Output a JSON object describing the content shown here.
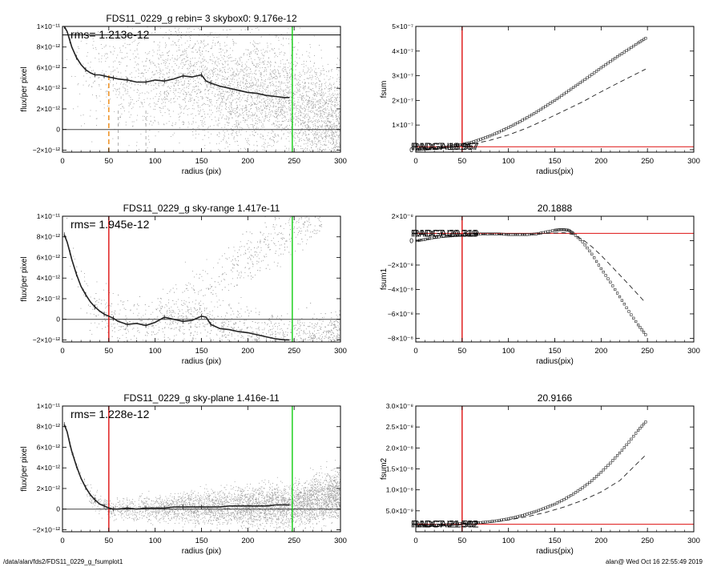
{
  "footer": {
    "left": "/data/alan/fds2/FDS11_0229_g_fsumplot1",
    "right": "alan@  Wed Oct 16 22:55:49 2019"
  },
  "colors": {
    "red": "#dd1111",
    "green": "#11cc11",
    "orange": "#ee8811",
    "points": "#9a9a9a"
  },
  "chart_data": [
    {
      "id": "p1",
      "type": "scatter",
      "title": "FDS11_0229_g rebin= 3    skybox0:  9.176e-12",
      "annotation": "rms= 1.213e-12",
      "xlabel": "radius (pix)",
      "ylabel": "flux/per pixel",
      "xlim": [
        0,
        300
      ],
      "ylim": [
        -2.2e-12,
        1e-11
      ],
      "xticks": [
        0,
        50,
        100,
        150,
        200,
        250,
        300
      ],
      "xticklabels": [
        "0",
        "50",
        "100",
        "150",
        "200",
        "250",
        "300"
      ],
      "yticks": [
        -2e-12,
        0,
        2e-12,
        4e-12,
        6e-12,
        8e-12,
        1e-11
      ],
      "yticklabels": [
        "−2×10⁻¹²",
        "0",
        "2×10⁻¹²",
        "4×10⁻¹²",
        "6×10⁻¹²",
        "8×10⁻¹²",
        "1×10⁻¹¹"
      ],
      "hlines": [
        {
          "y": 0,
          "color": "#444"
        },
        {
          "y": 9.176e-12,
          "color": "#000"
        }
      ],
      "vlines": [
        {
          "x": 248,
          "color": "#11cc11",
          "style": "solid"
        },
        {
          "x": 50,
          "color": "#ee8811",
          "style": "dash",
          "ymax": 5.5e-12
        },
        {
          "x": 60,
          "color": "#999",
          "style": "dash",
          "ymax": 2e-12
        },
        {
          "x": 90,
          "color": "#999",
          "style": "dash",
          "ymax": 2e-12
        }
      ],
      "scatter_model": "p1",
      "profile": {
        "x": [
          2,
          5,
          8,
          10,
          15,
          20,
          25,
          30,
          35,
          40,
          45,
          50,
          55,
          60,
          70,
          80,
          90,
          100,
          110,
          120,
          130,
          140,
          150,
          155,
          160,
          170,
          180,
          190,
          200,
          210,
          220,
          230,
          240,
          245
        ],
        "y": [
          1e-11,
          9.5e-12,
          8.6e-12,
          8e-12,
          7e-12,
          6.3e-12,
          5.8e-12,
          5.5e-12,
          5.3e-12,
          5.3e-12,
          5.2e-12,
          5.1e-12,
          5e-12,
          4.9e-12,
          4.8e-12,
          4.6e-12,
          4.6e-12,
          4.8e-12,
          4.7e-12,
          4.9e-12,
          5.2e-12,
          5.1e-12,
          5.3e-12,
          4.7e-12,
          4.5e-12,
          4.2e-12,
          4e-12,
          3.8e-12,
          3.6e-12,
          3.5e-12,
          3.3e-12,
          3.2e-12,
          3.1e-12,
          3.1e-12
        ]
      }
    },
    {
      "id": "p2",
      "type": "line",
      "title": "",
      "xlabel": "radius(pix)",
      "ylabel": "fsum",
      "xlim": [
        0,
        300
      ],
      "ylim": [
        -1e-08,
        5e-07
      ],
      "xticks": [
        0,
        50,
        100,
        150,
        200,
        250,
        300
      ],
      "xticklabels": [
        "0",
        "50",
        "100",
        "150",
        "200",
        "250",
        "300"
      ],
      "yticks": [
        0,
        1e-07,
        2e-07,
        3e-07,
        4e-07,
        5e-07
      ],
      "yticklabels": [
        "0",
        "1×10⁻⁷",
        "2×10⁻⁷",
        "3×10⁻⁷",
        "4×10⁻⁷",
        "5×10⁻⁷"
      ],
      "hlines": [
        {
          "y": 1.2e-08,
          "color": "#dd1111"
        }
      ],
      "vlines": [
        {
          "x": 50,
          "color": "#dd1111",
          "style": "solid"
        }
      ],
      "overlap_labels": [
        "RADCT",
        "RADGAL",
        "18.967",
        "18.967"
      ],
      "series": [
        {
          "name": "",
          "style": "markers",
          "x": [
            2,
            10,
            20,
            30,
            40,
            50,
            60,
            70,
            80,
            90,
            100,
            110,
            120,
            130,
            140,
            150,
            160,
            170,
            180,
            190,
            200,
            210,
            220,
            230,
            240,
            248
          ],
          "y": [
            0,
            2e-09,
            5e-09,
            9e-09,
            1.5e-08,
            2.1e-08,
            3e-08,
            4.2e-08,
            5.6e-08,
            7.2e-08,
            9e-08,
            1.09e-07,
            1.3e-07,
            1.52e-07,
            1.76e-07,
            2e-07,
            2.26e-07,
            2.52e-07,
            2.78e-07,
            3.05e-07,
            3.32e-07,
            3.58e-07,
            3.84e-07,
            4.08e-07,
            4.33e-07,
            4.52e-07
          ]
        },
        {
          "name": "",
          "style": "dash",
          "x": [
            2,
            20,
            40,
            60,
            80,
            100,
            120,
            140,
            160,
            180,
            200,
            220,
            248
          ],
          "y": [
            0,
            4e-09,
            1.2e-08,
            2.2e-08,
            3.8e-08,
            6e-08,
            8.8e-08,
            1.22e-07,
            1.58e-07,
            1.94e-07,
            2.35e-07,
            2.74e-07,
            3.27e-07
          ]
        }
      ]
    },
    {
      "id": "p3",
      "type": "scatter",
      "title": "FDS11_0229_g sky-range  1.417e-11",
      "annotation": "rms= 1.945e-12",
      "xlabel": "radius (pix)",
      "ylabel": "flux/per pixel",
      "xlim": [
        0,
        300
      ],
      "ylim": [
        -2.2e-12,
        1e-11
      ],
      "xticks": [
        0,
        50,
        100,
        150,
        200,
        250,
        300
      ],
      "xticklabels": [
        "0",
        "50",
        "100",
        "150",
        "200",
        "250",
        "300"
      ],
      "yticks": [
        -2e-12,
        0,
        2e-12,
        4e-12,
        6e-12,
        8e-12,
        1e-11
      ],
      "yticklabels": [
        "−2×10⁻¹²",
        "0",
        "2×10⁻¹²",
        "4×10⁻¹²",
        "6×10⁻¹²",
        "8×10⁻¹²",
        "1×10⁻¹¹"
      ],
      "hlines": [
        {
          "y": 0,
          "color": "#444"
        }
      ],
      "vlines": [
        {
          "x": 50,
          "color": "#dd1111",
          "style": "solid"
        },
        {
          "x": 248,
          "color": "#11cc11",
          "style": "solid"
        }
      ],
      "scatter_model": "p3",
      "profile": {
        "x": [
          2,
          5,
          8,
          10,
          15,
          20,
          25,
          30,
          35,
          40,
          45,
          50,
          55,
          60,
          70,
          80,
          90,
          100,
          110,
          120,
          130,
          140,
          150,
          155,
          160,
          170,
          180,
          190,
          200,
          210,
          220,
          230,
          240,
          245
        ],
        "y": [
          8.2e-12,
          7.5e-12,
          6.5e-12,
          5.8e-12,
          4.4e-12,
          3.2e-12,
          2.4e-12,
          1.7e-12,
          1.2e-12,
          8e-13,
          5e-13,
          3e-13,
          1e-13,
          -2e-13,
          -5e-13,
          -4e-13,
          -6e-13,
          -3e-13,
          2e-13,
          0,
          -2e-13,
          -1e-13,
          3e-13,
          2e-13,
          -5e-13,
          -9e-13,
          -1e-12,
          -1.2e-12,
          -1.3e-12,
          -1.5e-12,
          -1.7e-12,
          -1.9e-12,
          -2e-12,
          -2e-12
        ]
      }
    },
    {
      "id": "p4",
      "type": "line",
      "title": "20.1888",
      "xlabel": "radius(pix)",
      "ylabel": "fsum1",
      "xlim": [
        0,
        300
      ],
      "ylim": [
        -8.3e-08,
        2e-08
      ],
      "xticks": [
        0,
        50,
        100,
        150,
        200,
        250,
        300
      ],
      "xticklabels": [
        "0",
        "50",
        "100",
        "150",
        "200",
        "250",
        "300"
      ],
      "yticks": [
        -8e-08,
        -6e-08,
        -4e-08,
        -2e-08,
        0,
        2e-08
      ],
      "yticklabels": [
        "−8×10⁻⁸",
        "−6×10⁻⁸",
        "−4×10⁻⁸",
        "−2×10⁻⁸",
        "0",
        "2×10⁻⁸"
      ],
      "hlines": [
        {
          "y": 6e-09,
          "color": "#dd1111"
        }
      ],
      "vlines": [
        {
          "x": 50,
          "color": "#dd1111",
          "style": "solid"
        }
      ],
      "overlap_labels": [
        "RADCT",
        "RADGAL",
        "20.319",
        "20.319"
      ],
      "series": [
        {
          "name": "",
          "style": "markers",
          "x": [
            2,
            10,
            20,
            30,
            40,
            50,
            60,
            70,
            80,
            90,
            100,
            110,
            120,
            130,
            140,
            150,
            155,
            160,
            165,
            170,
            180,
            190,
            200,
            210,
            220,
            230,
            240,
            248
          ],
          "y": [
            0,
            1e-09,
            2.5e-09,
            3.5e-09,
            4e-09,
            4.5e-09,
            5e-09,
            5.5e-09,
            5.5e-09,
            5.5e-09,
            5e-09,
            5e-09,
            5e-09,
            5.5e-09,
            7e-09,
            8.5e-09,
            9e-09,
            9e-09,
            8.5e-09,
            6e-09,
            -1e-09,
            -1.1e-08,
            -2.3e-08,
            -3.4e-08,
            -4.6e-08,
            -5.8e-08,
            -6.9e-08,
            -7.7e-08
          ]
        },
        {
          "name": "",
          "style": "dash",
          "x": [
            2,
            20,
            40,
            60,
            80,
            100,
            120,
            140,
            160,
            170,
            180,
            190,
            200,
            210,
            220,
            230,
            248
          ],
          "y": [
            0,
            2e-09,
            3.5e-09,
            5e-09,
            5.5e-09,
            5e-09,
            5e-09,
            6e-09,
            6.5e-09,
            5e-09,
            1e-09,
            -5e-09,
            -1.2e-08,
            -2e-08,
            -2.8e-08,
            -3.6e-08,
            -5.1e-08
          ]
        }
      ]
    },
    {
      "id": "p5",
      "type": "scatter",
      "title": "FDS11_0229_g sky-plane  1.416e-11",
      "annotation": "rms= 1.228e-12",
      "xlabel": "radius (pix)",
      "ylabel": "flux/per pixel",
      "xlim": [
        0,
        300
      ],
      "ylim": [
        -2.2e-12,
        1e-11
      ],
      "xticks": [
        0,
        50,
        100,
        150,
        200,
        250,
        300
      ],
      "xticklabels": [
        "0",
        "50",
        "100",
        "150",
        "200",
        "250",
        "300"
      ],
      "yticks": [
        -2e-12,
        0,
        2e-12,
        4e-12,
        6e-12,
        8e-12,
        1e-11
      ],
      "yticklabels": [
        "−2×10⁻¹²",
        "0",
        "2×10⁻¹²",
        "4×10⁻¹²",
        "6×10⁻¹²",
        "8×10⁻¹²",
        "1×10⁻¹¹"
      ],
      "hlines": [
        {
          "y": 0,
          "color": "#444"
        }
      ],
      "vlines": [
        {
          "x": 50,
          "color": "#dd1111",
          "style": "solid"
        },
        {
          "x": 248,
          "color": "#11cc11",
          "style": "solid"
        }
      ],
      "scatter_model": "p5",
      "profile": {
        "x": [
          2,
          5,
          8,
          10,
          15,
          20,
          25,
          30,
          35,
          40,
          45,
          50,
          55,
          60,
          70,
          80,
          90,
          100,
          110,
          120,
          130,
          140,
          150,
          160,
          170,
          180,
          190,
          200,
          210,
          220,
          230,
          240,
          245
        ],
        "y": [
          8.2e-12,
          7.5e-12,
          6.3e-12,
          5.6e-12,
          4.2e-12,
          3e-12,
          2.1e-12,
          1.4e-12,
          9e-13,
          5e-13,
          3e-13,
          1e-13,
          0,
          0,
          1e-13,
          0,
          1e-13,
          1e-13,
          1e-13,
          2e-13,
          2e-13,
          2e-13,
          2e-13,
          2e-13,
          2e-13,
          3e-13,
          3e-13,
          3e-13,
          3e-13,
          3e-13,
          4e-13,
          4e-13,
          4e-13
        ]
      }
    },
    {
      "id": "p6",
      "type": "line",
      "title": "20.9166",
      "xlabel": "radius(pix)",
      "ylabel": "fsum2",
      "xlim": [
        0,
        300
      ],
      "ylim": [
        0,
        3e-08
      ],
      "xticks": [
        0,
        50,
        100,
        150,
        200,
        250,
        300
      ],
      "xticklabels": [
        "0",
        "50",
        "100",
        "150",
        "200",
        "250",
        "300"
      ],
      "yticks": [
        5e-09,
        1e-08,
        1.5e-08,
        2e-08,
        2.5e-08,
        3e-08
      ],
      "yticklabels": [
        "5.0×10⁻⁹",
        "1.0×10⁻⁸",
        "1.5×10⁻⁸",
        "2.0×10⁻⁸",
        "2.5×10⁻⁸",
        "3.0×10⁻⁸"
      ],
      "hlines": [
        {
          "y": 1.8e-09,
          "color": "#dd1111"
        }
      ],
      "vlines": [
        {
          "x": 50,
          "color": "#dd1111",
          "style": "solid"
        }
      ],
      "overlap_labels": [
        "RADCT",
        "RADGAL",
        "21.502",
        "21.502"
      ],
      "series": [
        {
          "name": "",
          "style": "markers",
          "x": [
            2,
            10,
            20,
            30,
            40,
            50,
            60,
            70,
            80,
            90,
            100,
            110,
            120,
            130,
            140,
            150,
            160,
            170,
            180,
            190,
            200,
            210,
            220,
            230,
            240,
            248
          ],
          "y": [
            1.4e-09,
            1.4e-09,
            1.5e-09,
            1.6e-09,
            1.8e-09,
            2e-09,
            2.1e-09,
            2.2e-09,
            2.4e-09,
            2.7e-09,
            3.1e-09,
            3.6e-09,
            4.2e-09,
            4.9e-09,
            5.7e-09,
            6.6e-09,
            7.7e-09,
            9e-09,
            1.05e-08,
            1.22e-08,
            1.42e-08,
            1.64e-08,
            1.88e-08,
            2.14e-08,
            2.42e-08,
            2.62e-08
          ]
        },
        {
          "name": "",
          "style": "dash",
          "x": [
            2,
            20,
            40,
            60,
            80,
            100,
            120,
            140,
            160,
            180,
            200,
            220,
            248
          ],
          "y": [
            1.2e-09,
            1.3e-09,
            1.5e-09,
            1.8e-09,
            2.2e-09,
            2.8e-09,
            3.6e-09,
            4.6e-09,
            5.9e-09,
            7.5e-09,
            9.5e-09,
            1.22e-08,
            1.83e-08
          ]
        }
      ]
    }
  ]
}
